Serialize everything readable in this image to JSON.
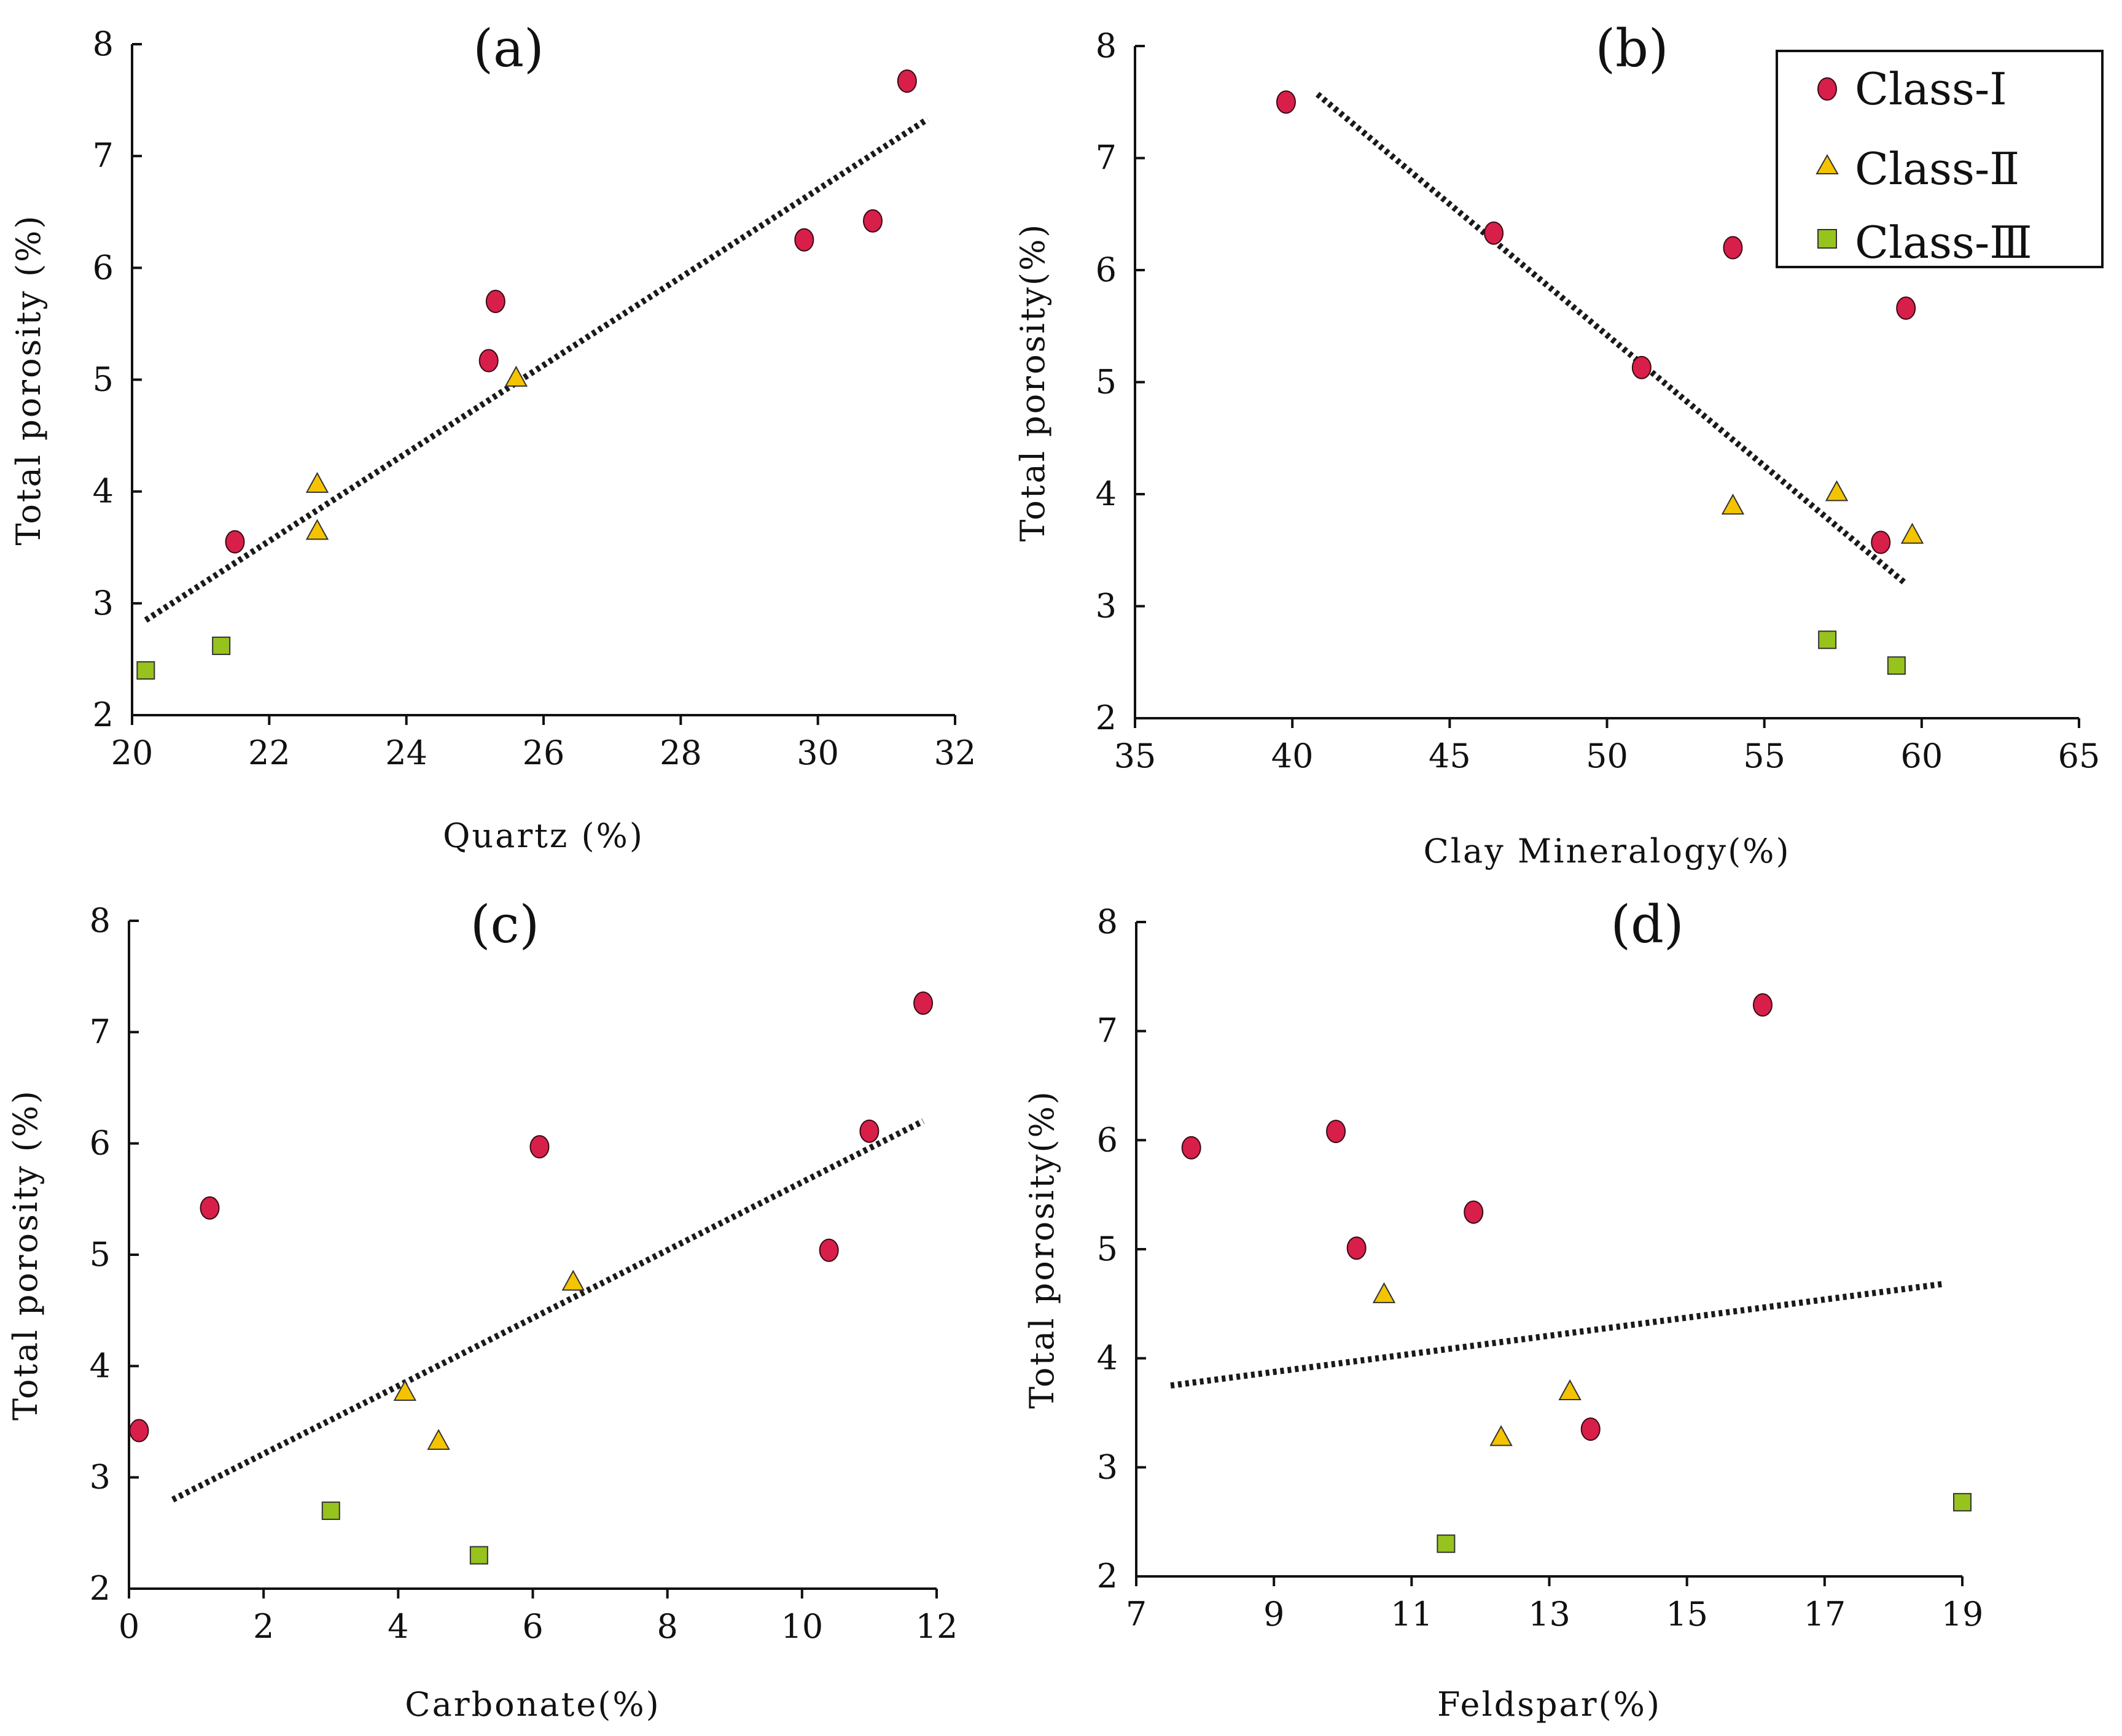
{
  "legend": {
    "position": "top-right of panel (b)",
    "items": [
      {
        "label": "Class-Ⅰ",
        "marker": "circle",
        "color": "#d81f4a"
      },
      {
        "label": "Class-Ⅱ",
        "marker": "triangle",
        "color": "#f5c400"
      },
      {
        "label": "Class-Ⅲ",
        "marker": "square",
        "color": "#96c31e"
      }
    ]
  },
  "chart_data": [
    {
      "id": "a",
      "type": "scatter",
      "title": "(a)",
      "xlabel": "Quartz (%)",
      "ylabel": "Total porosity (%)",
      "xlim": [
        20,
        32
      ],
      "ylim": [
        2,
        8
      ],
      "xticks": [
        20,
        22,
        24,
        26,
        28,
        30,
        32
      ],
      "yticks": [
        2,
        3,
        4,
        5,
        6,
        7,
        8
      ],
      "series": [
        {
          "name": "Class-Ⅰ",
          "points": [
            [
              21.5,
              3.55
            ],
            [
              25.2,
              5.17
            ],
            [
              25.3,
              5.7
            ],
            [
              29.8,
              6.25
            ],
            [
              30.8,
              6.42
            ],
            [
              31.3,
              7.67
            ]
          ]
        },
        {
          "name": "Class-Ⅱ",
          "points": [
            [
              22.7,
              4.07
            ],
            [
              22.7,
              3.65
            ],
            [
              25.6,
              5.02
            ]
          ]
        },
        {
          "name": "Class-Ⅲ",
          "points": [
            [
              20.2,
              2.4
            ],
            [
              21.3,
              2.62
            ]
          ]
        }
      ],
      "trendline": [
        [
          20.2,
          2.85
        ],
        [
          31.6,
          7.33
        ]
      ]
    },
    {
      "id": "b",
      "type": "scatter",
      "title": "(b)",
      "xlabel": "Clay Mineralogy(%)",
      "ylabel": "Total porosity(%)",
      "xlim": [
        35,
        65
      ],
      "ylim": [
        2,
        8
      ],
      "xticks": [
        35,
        40,
        45,
        50,
        55,
        60,
        65
      ],
      "yticks": [
        2,
        3,
        4,
        5,
        6,
        7,
        8
      ],
      "series": [
        {
          "name": "Class-Ⅰ",
          "points": [
            [
              39.8,
              7.5
            ],
            [
              46.4,
              6.33
            ],
            [
              51.1,
              5.13
            ],
            [
              54.0,
              6.2
            ],
            [
              58.7,
              3.57
            ],
            [
              59.5,
              5.66
            ]
          ]
        },
        {
          "name": "Class-Ⅱ",
          "points": [
            [
              54.0,
              3.9
            ],
            [
              57.3,
              4.02
            ],
            [
              59.7,
              3.64
            ]
          ]
        },
        {
          "name": "Class-Ⅲ",
          "points": [
            [
              57.0,
              2.7
            ],
            [
              59.2,
              2.47
            ]
          ]
        }
      ],
      "trendline": [
        [
          40.8,
          7.57
        ],
        [
          59.5,
          3.2
        ]
      ]
    },
    {
      "id": "c",
      "type": "scatter",
      "title": "(c)",
      "xlabel": "Carbonate(%)",
      "ylabel": "Total porosity (%)",
      "xlim": [
        0,
        12
      ],
      "ylim": [
        2,
        8
      ],
      "xticks": [
        0,
        2,
        4,
        6,
        8,
        10,
        12
      ],
      "yticks": [
        2,
        3,
        4,
        5,
        6,
        7,
        8
      ],
      "series": [
        {
          "name": "Class-Ⅰ",
          "points": [
            [
              0.15,
              3.42
            ],
            [
              1.2,
              5.42
            ],
            [
              6.1,
              5.97
            ],
            [
              10.4,
              5.04
            ],
            [
              11.0,
              6.11
            ],
            [
              11.8,
              7.26
            ]
          ]
        },
        {
          "name": "Class-Ⅱ",
          "points": [
            [
              4.1,
              3.77
            ],
            [
              4.6,
              3.33
            ],
            [
              6.6,
              4.76
            ]
          ]
        },
        {
          "name": "Class-Ⅲ",
          "points": [
            [
              3.0,
              2.7
            ],
            [
              5.2,
              2.3
            ]
          ]
        }
      ],
      "trendline": [
        [
          0.65,
          2.8
        ],
        [
          11.8,
          6.2
        ]
      ]
    },
    {
      "id": "d",
      "type": "scatter",
      "title": "(d)",
      "xlabel": "Feldspar(%)",
      "ylabel": "Total porosity(%)",
      "xlim": [
        7,
        19
      ],
      "ylim": [
        2,
        8
      ],
      "xticks": [
        7,
        9,
        11,
        13,
        15,
        17,
        19
      ],
      "yticks": [
        2,
        3,
        4,
        5,
        6,
        7,
        8
      ],
      "series": [
        {
          "name": "Class-Ⅰ",
          "points": [
            [
              7.8,
              5.93
            ],
            [
              9.9,
              6.08
            ],
            [
              10.2,
              5.01
            ],
            [
              11.9,
              5.34
            ],
            [
              13.6,
              3.35
            ],
            [
              16.1,
              7.24
            ]
          ]
        },
        {
          "name": "Class-Ⅱ",
          "points": [
            [
              10.6,
              4.59
            ],
            [
              12.3,
              3.28
            ],
            [
              13.3,
              3.7
            ]
          ]
        },
        {
          "name": "Class-Ⅲ",
          "points": [
            [
              11.5,
              2.3
            ],
            [
              19.0,
              2.68
            ]
          ]
        }
      ],
      "trendline": [
        [
          7.5,
          3.75
        ],
        [
          18.7,
          4.68
        ]
      ]
    }
  ]
}
